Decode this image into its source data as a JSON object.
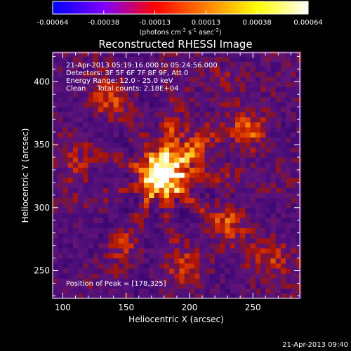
{
  "chart_data": {
    "type": "heatmap",
    "title": "Reconstructed RHESSI Image",
    "xlabel": "Heliocentric X (arcsec)",
    "ylabel": "Heliocentric Y (arcsec)",
    "xlim": [
      92,
      287
    ],
    "ylim": [
      228,
      423
    ],
    "xticks": [
      100,
      150,
      200,
      250
    ],
    "yticks": [
      250,
      300,
      350,
      400
    ],
    "colorbar": {
      "ticks": [
        "-0.00064",
        "-0.00038",
        "-0.00013",
        "0.00013",
        "0.00038",
        "0.00064"
      ],
      "unit_main": "(photons cm",
      "unit_sup1": "-2",
      "unit_mid1": " s",
      "unit_sup2": "-1",
      "unit_mid2": " asec",
      "unit_sup3": "-2",
      "unit_end": ")",
      "range": [
        -0.00064,
        0.00064
      ],
      "colors": [
        "#0000ff",
        "#7f00ff",
        "#ff0000",
        "#ff8000",
        "#ffff00",
        "#ffffff"
      ]
    },
    "annotations": {
      "time": "21-Apr-2013 05:19:16.000 to 05:24:56.000",
      "detectors": "Detectors: 3F 5F 6F 7F 8F 9F, Att 0",
      "energy": "Energy Range: 12.0 - 25.0 keV",
      "clean": "Clean     Total counts: 2.18E+04",
      "peak": "Position of Peak = [178,325]"
    },
    "peak": [
      178,
      325
    ],
    "blobs": [
      {
        "x": 178,
        "y": 325,
        "amp": 1.0,
        "sigma": 12
      },
      {
        "x": 195,
        "y": 345,
        "amp": 0.45,
        "sigma": 18
      },
      {
        "x": 248,
        "y": 360,
        "amp": 0.55,
        "sigma": 10
      },
      {
        "x": 232,
        "y": 290,
        "amp": 0.4,
        "sigma": 12
      },
      {
        "x": 110,
        "y": 330,
        "amp": 0.35,
        "sigma": 10
      },
      {
        "x": 200,
        "y": 255,
        "amp": 0.35,
        "sigma": 12
      },
      {
        "x": 135,
        "y": 385,
        "amp": 0.35,
        "sigma": 12
      },
      {
        "x": 265,
        "y": 260,
        "amp": 0.3,
        "sigma": 12
      },
      {
        "x": 225,
        "y": 400,
        "amp": 0.3,
        "sigma": 10
      },
      {
        "x": 150,
        "y": 270,
        "amp": 0.25,
        "sigma": 10
      }
    ]
  },
  "footer": {
    "timestamp": "21-Apr-2013 09:40"
  }
}
